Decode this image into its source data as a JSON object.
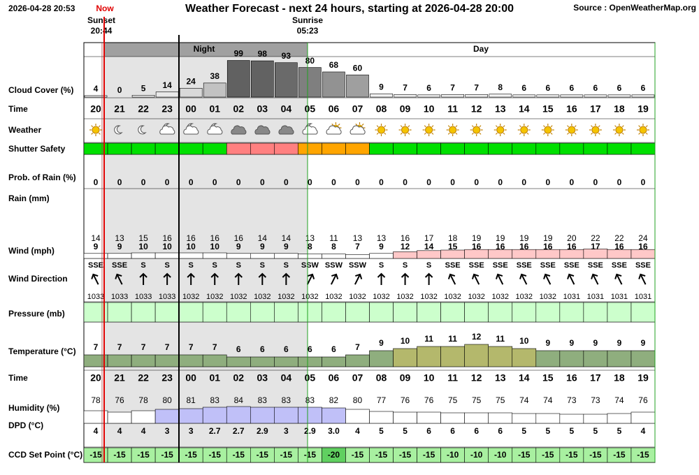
{
  "header": {
    "timestamp": "2026-04-28 20:53",
    "now": "Now",
    "title": "Weather Forecast - next 24 hours, starting at 2026-04-28 20:00",
    "source": "Source : OpenWeatherMap.org",
    "sunset": "Sunset",
    "sunset_time": "20:44",
    "sunrise": "Sunrise",
    "sunrise_time": "05:23",
    "night": "Night",
    "day": "Day"
  },
  "hours": [
    "20",
    "21",
    "22",
    "23",
    "00",
    "01",
    "02",
    "03",
    "04",
    "05",
    "06",
    "07",
    "08",
    "09",
    "10",
    "11",
    "12",
    "13",
    "14",
    "15",
    "16",
    "17",
    "18",
    "19"
  ],
  "rows": {
    "cloud_cover": {
      "label": "Cloud Cover (%)",
      "values": [
        4,
        0,
        5,
        14,
        24,
        38,
        99,
        98,
        93,
        80,
        68,
        60,
        9,
        7,
        6,
        7,
        7,
        8,
        6,
        6,
        6,
        6,
        6,
        6
      ]
    },
    "time": {
      "label": "Time"
    },
    "weather": {
      "label": "Weather",
      "icons": [
        "sun",
        "moon",
        "moon",
        "cloud-moon",
        "cloud-moon",
        "cloud-moon",
        "cloud",
        "cloud",
        "cloud",
        "cloud-moon",
        "cloud-sun",
        "cloud-sun",
        "sun",
        "sun",
        "sun",
        "sun",
        "sun",
        "sun",
        "sun",
        "sun",
        "sun",
        "sun",
        "sun",
        "sun"
      ]
    },
    "shutter_safety": {
      "label": "Shutter Safety",
      "colors": [
        "#00e000",
        "#00e000",
        "#00e000",
        "#00e000",
        "#00e000",
        "#00e000",
        "#ff8080",
        "#ff8080",
        "#ff8080",
        "#ffa500",
        "#ffa500",
        "#ffa500",
        "#00e000",
        "#00e000",
        "#00e000",
        "#00e000",
        "#00e000",
        "#00e000",
        "#00e000",
        "#00e000",
        "#00e000",
        "#00e000",
        "#00e000",
        "#00e000"
      ]
    },
    "rain_probability": {
      "label": "Prob. of Rain (%)",
      "values": [
        0,
        0,
        0,
        0,
        0,
        0,
        0,
        0,
        0,
        0,
        0,
        0,
        0,
        0,
        0,
        0,
        0,
        0,
        0,
        0,
        0,
        0,
        0,
        0
      ]
    },
    "rain": {
      "label": "Rain (mm)"
    },
    "wind": {
      "label": "Wind (mph)",
      "gust": [
        14,
        13,
        15,
        16,
        16,
        16,
        16,
        14,
        14,
        13,
        11,
        13,
        13,
        16,
        17,
        18,
        19,
        19,
        19,
        19,
        20,
        22,
        22,
        24
      ],
      "speed": [
        9,
        9,
        10,
        10,
        10,
        10,
        9,
        9,
        9,
        8,
        8,
        7,
        9,
        12,
        14,
        15,
        16,
        16,
        16,
        16,
        16,
        17,
        16,
        16
      ]
    },
    "wind_direction": {
      "label": "Wind Direction",
      "values": [
        "SSE",
        "SSE",
        "S",
        "S",
        "S",
        "S",
        "S",
        "S",
        "S",
        "SSW",
        "SSW",
        "SSW",
        "S",
        "S",
        "S",
        "SSE",
        "SSE",
        "SSE",
        "SSE",
        "SSE",
        "SSE",
        "SSE",
        "SSE",
        "SSE"
      ]
    },
    "pressure": {
      "label": "Pressure (mb)",
      "values": [
        1033,
        1033,
        1033,
        1033,
        1032,
        1032,
        1032,
        1032,
        1032,
        1032,
        1032,
        1032,
        1032,
        1032,
        1032,
        1032,
        1032,
        1032,
        1032,
        1032,
        1031,
        1031,
        1031,
        1031
      ]
    },
    "temperature": {
      "label": "Temperature (°C)",
      "values": [
        7,
        7,
        7,
        7,
        7,
        7,
        6,
        6,
        6,
        6,
        6,
        7,
        9,
        10,
        11,
        11,
        12,
        11,
        10,
        9,
        9,
        9,
        9,
        9
      ]
    },
    "time_2": {
      "label": "Time"
    },
    "humidity": {
      "label": "Humidity (%)",
      "values": [
        78,
        76,
        78,
        80,
        81,
        83,
        84,
        83,
        83,
        83,
        82,
        80,
        77,
        76,
        76,
        75,
        75,
        75,
        74,
        74,
        73,
        73,
        74,
        76
      ]
    },
    "dpd": {
      "label": "DPD (°C)",
      "values": [
        4,
        4,
        4,
        3,
        3,
        2.7,
        2.7,
        2.9,
        3,
        2.9,
        3.0,
        4,
        5,
        5,
        6,
        6,
        6,
        6,
        5,
        5,
        5,
        5,
        5,
        4
      ],
      "value_labels": [
        "4",
        "4",
        "4",
        "3",
        "3",
        "2.7",
        "2.7",
        "2.9",
        "3",
        "2.9",
        "3.0",
        "4",
        "5",
        "5",
        "6",
        "6",
        "6",
        "6",
        "5",
        "5",
        "5",
        "5",
        "5",
        "4"
      ]
    },
    "ccd_set_point": {
      "label": "CCD Set Point (°C)",
      "values": [
        -15,
        -15,
        -15,
        -15,
        -15,
        -15,
        -15,
        -15,
        -15,
        -15,
        -20,
        -15,
        -15,
        -15,
        -15,
        -10,
        -10,
        -10,
        -15,
        -15,
        -15,
        -15,
        -15,
        -15
      ]
    }
  }
}
